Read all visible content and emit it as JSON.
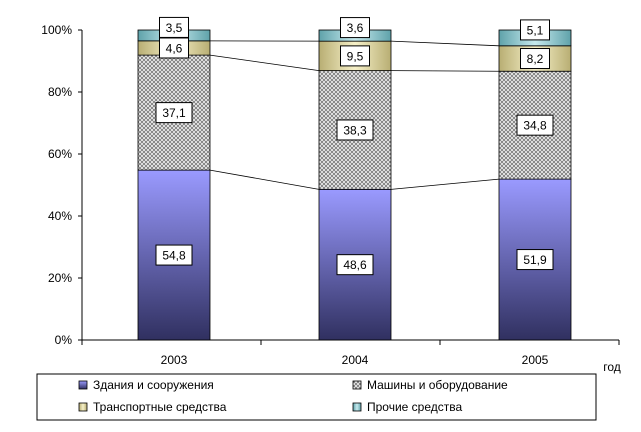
{
  "chart_data": {
    "type": "bar",
    "stacked": true,
    "percent": true,
    "categories": [
      "2003",
      "2004",
      "2005"
    ],
    "xlabel": "год",
    "ylabel": "",
    "title": "",
    "ylim": [
      0,
      100
    ],
    "yticks": [
      "0%",
      "20%",
      "40%",
      "60%",
      "80%",
      "100%"
    ],
    "series": [
      {
        "name": "Здания и сооружения",
        "values": [
          54.8,
          48.6,
          51.9
        ],
        "labels": [
          "54,8",
          "48,6",
          "51,9"
        ],
        "color": "#7f7fff"
      },
      {
        "name": "Машины и оборудование",
        "values": [
          37.1,
          38.3,
          34.8
        ],
        "labels": [
          "37,1",
          "38,3",
          "34,8"
        ],
        "color": "#cfcfcf"
      },
      {
        "name": "Транспортные средства",
        "values": [
          4.6,
          9.5,
          8.2
        ],
        "labels": [
          "4,6",
          "9,5",
          "8,2"
        ],
        "color": "#d8cf9a"
      },
      {
        "name": "Прочие  средства",
        "values": [
          3.5,
          3.6,
          5.1
        ],
        "labels": [
          "3,5",
          "3,6",
          "5,1"
        ],
        "color": "#8fc6cc"
      }
    ],
    "grid": false,
    "legend_position": "bottom"
  }
}
